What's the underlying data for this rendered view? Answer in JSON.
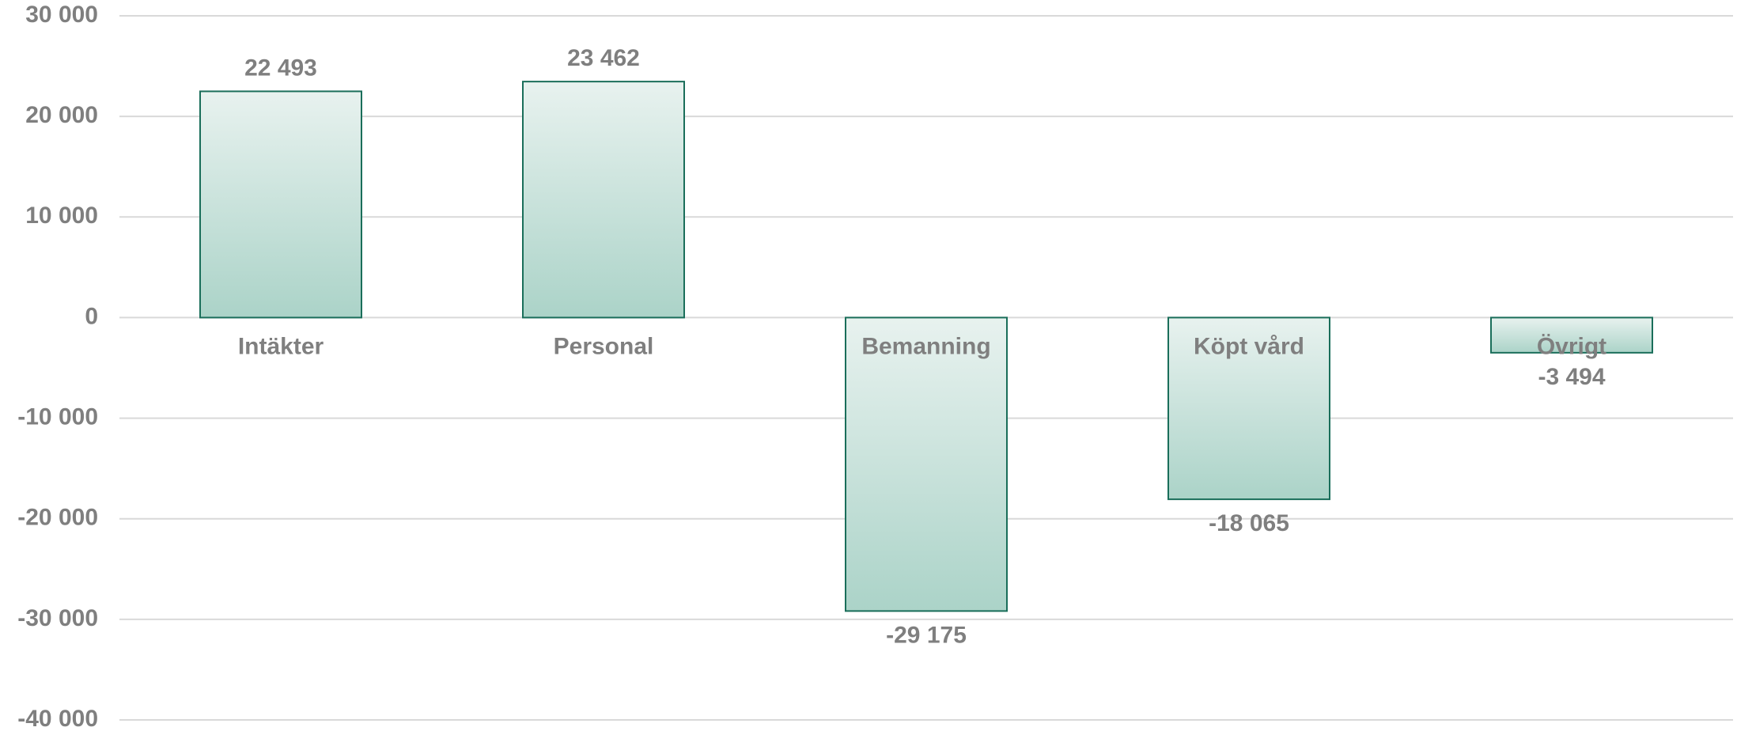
{
  "chart_data": {
    "type": "bar",
    "categories": [
      "Intäkter",
      "Personal",
      "Bemanning",
      "Köpt vård",
      "Övrigt"
    ],
    "values": [
      22493,
      23462,
      -29175,
      -18065,
      -3494
    ],
    "value_labels": [
      "22 493",
      "23 462",
      "-29 175",
      "-18 065",
      "-3 494"
    ],
    "color": "#abd3c8",
    "ylim": [
      -40000,
      30000
    ],
    "yticks": [
      {
        "value": -40000,
        "label": "-40 000"
      },
      {
        "value": -30000,
        "label": "-30 000"
      },
      {
        "value": -20000,
        "label": "-20 000"
      },
      {
        "value": -10000,
        "label": "-10 000"
      },
      0,
      {
        "value": 10000,
        "label": "10 000"
      },
      {
        "value": 20000,
        "label": "20 000"
      },
      {
        "value": 30000,
        "label": "30 000"
      }
    ],
    "grid": true
  }
}
